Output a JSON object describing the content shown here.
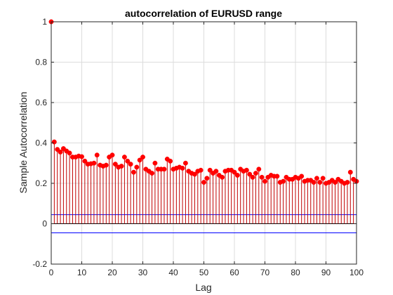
{
  "colors": {
    "stem": "#c00000",
    "marker": "#ff0000",
    "bound": "#0000ff",
    "axis": "#262626",
    "grid": "#dcdcdc"
  },
  "chart_data": {
    "type": "stem",
    "title": "autocorrelation of EURUSD range",
    "xlabel": "Lag",
    "ylabel": "Sample Autocorrelation",
    "xlim": [
      0,
      100
    ],
    "ylim": [
      -0.2,
      1
    ],
    "xticks": [
      0,
      10,
      20,
      30,
      40,
      50,
      60,
      70,
      80,
      90,
      100
    ],
    "yticks": [
      -0.2,
      0,
      0.2,
      0.4,
      0.6,
      0.8,
      1
    ],
    "ytick_labels": [
      "-0.2",
      "0",
      "0.2",
      "0.4",
      "0.6",
      "0.8",
      "1"
    ],
    "grid": true,
    "confidence_bounds": [
      0.045,
      -0.045
    ],
    "lags": [
      0,
      1,
      2,
      3,
      4,
      5,
      6,
      7,
      8,
      9,
      10,
      11,
      12,
      13,
      14,
      15,
      16,
      17,
      18,
      19,
      20,
      21,
      22,
      23,
      24,
      25,
      26,
      27,
      28,
      29,
      30,
      31,
      32,
      33,
      34,
      35,
      36,
      37,
      38,
      39,
      40,
      41,
      42,
      43,
      44,
      45,
      46,
      47,
      48,
      49,
      50,
      51,
      52,
      53,
      54,
      55,
      56,
      57,
      58,
      59,
      60,
      61,
      62,
      63,
      64,
      65,
      66,
      67,
      68,
      69,
      70,
      71,
      72,
      73,
      74,
      75,
      76,
      77,
      78,
      79,
      80,
      81,
      82,
      83,
      84,
      85,
      86,
      87,
      88,
      89,
      90,
      91,
      92,
      93,
      94,
      95,
      96,
      97,
      98,
      99,
      100
    ],
    "values": [
      1.0,
      0.405,
      0.368,
      0.355,
      0.372,
      0.36,
      0.35,
      0.33,
      0.33,
      0.335,
      0.332,
      0.31,
      0.295,
      0.297,
      0.3,
      0.34,
      0.29,
      0.285,
      0.29,
      0.33,
      0.34,
      0.295,
      0.28,
      0.285,
      0.33,
      0.31,
      0.295,
      0.255,
      0.28,
      0.315,
      0.33,
      0.27,
      0.26,
      0.25,
      0.3,
      0.27,
      0.27,
      0.27,
      0.32,
      0.31,
      0.27,
      0.275,
      0.28,
      0.275,
      0.3,
      0.26,
      0.25,
      0.245,
      0.26,
      0.265,
      0.205,
      0.225,
      0.265,
      0.25,
      0.26,
      0.24,
      0.23,
      0.26,
      0.265,
      0.265,
      0.255,
      0.24,
      0.27,
      0.26,
      0.265,
      0.245,
      0.23,
      0.25,
      0.27,
      0.23,
      0.21,
      0.23,
      0.24,
      0.235,
      0.235,
      0.205,
      0.21,
      0.23,
      0.22,
      0.22,
      0.23,
      0.225,
      0.235,
      0.21,
      0.215,
      0.215,
      0.205,
      0.225,
      0.205,
      0.225,
      0.2,
      0.205,
      0.215,
      0.205,
      0.22,
      0.21,
      0.2,
      0.205,
      0.255,
      0.22,
      0.21
    ]
  }
}
